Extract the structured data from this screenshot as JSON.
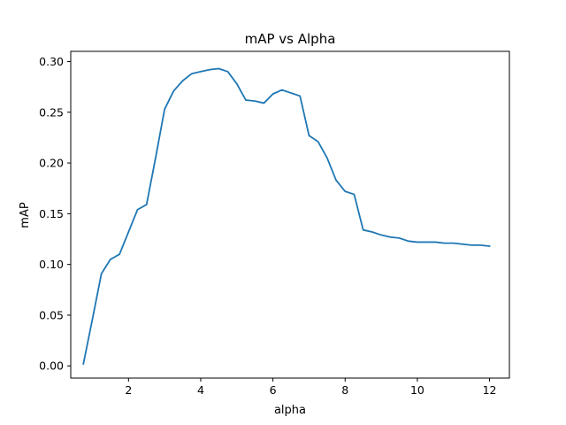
{
  "chart_data": {
    "type": "line",
    "title": "mAP vs Alpha",
    "xlabel": "alpha",
    "ylabel": "mAP",
    "xlim": [
      0.4,
      12.55
    ],
    "ylim": [
      -0.012,
      0.31
    ],
    "xticks": [
      2,
      4,
      6,
      8,
      10,
      12
    ],
    "yticks": [
      0.0,
      0.05,
      0.1,
      0.15,
      0.2,
      0.25,
      0.3
    ],
    "xtick_labels": [
      "2",
      "4",
      "6",
      "8",
      "10",
      "12"
    ],
    "ytick_labels": [
      "0.00",
      "0.05",
      "0.10",
      "0.15",
      "0.20",
      "0.25",
      "0.30"
    ],
    "grid": false,
    "series": [
      {
        "color": "#1f77b4",
        "x": [
          0.75,
          1.0,
          1.25,
          1.5,
          1.75,
          2.0,
          2.25,
          2.5,
          2.75,
          3.0,
          3.25,
          3.5,
          3.75,
          4.0,
          4.25,
          4.5,
          4.75,
          5.0,
          5.25,
          5.5,
          5.75,
          6.0,
          6.25,
          6.5,
          6.75,
          7.0,
          7.25,
          7.5,
          7.75,
          8.0,
          8.25,
          8.5,
          8.75,
          9.0,
          9.25,
          9.5,
          9.75,
          10.0,
          10.25,
          10.5,
          10.75,
          11.0,
          11.25,
          11.5,
          11.75,
          12.0
        ],
        "y": [
          0.002,
          0.046,
          0.091,
          0.105,
          0.11,
          0.132,
          0.154,
          0.159,
          0.205,
          0.253,
          0.271,
          0.281,
          0.288,
          0.29,
          0.292,
          0.293,
          0.29,
          0.278,
          0.262,
          0.261,
          0.259,
          0.268,
          0.272,
          0.269,
          0.266,
          0.227,
          0.221,
          0.205,
          0.183,
          0.172,
          0.169,
          0.134,
          0.132,
          0.129,
          0.127,
          0.126,
          0.123,
          0.122,
          0.122,
          0.122,
          0.121,
          0.121,
          0.12,
          0.119,
          0.119,
          0.118
        ]
      }
    ]
  }
}
